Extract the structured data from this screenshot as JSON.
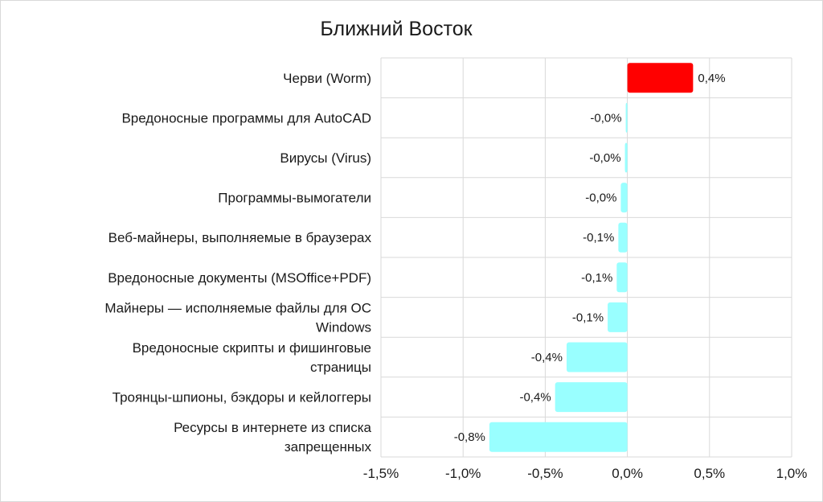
{
  "chart_data": {
    "type": "bar",
    "orientation": "horizontal",
    "title": "Ближний Восток",
    "xlabel": "",
    "ylabel": "",
    "xlim": [
      -1.5,
      1.0
    ],
    "x_ticks": [
      -1.5,
      -1.0,
      -0.5,
      0.0,
      0.5,
      1.0
    ],
    "x_tick_labels": [
      "-1,5%",
      "-1,0%",
      "-0,5%",
      "0,0%",
      "0,5%",
      "1,0%"
    ],
    "grid": true,
    "legend": "none",
    "categories": [
      [
        "Черви (Worm)"
      ],
      [
        "Вредоносные программы для AutoCAD"
      ],
      [
        "Вирусы (Virus)"
      ],
      [
        "Программы-вымогатели"
      ],
      [
        "Веб-майнеры, выполняемые в браузерах"
      ],
      [
        "Вредоносные документы (MSOffice+PDF)"
      ],
      [
        "Майнеры — исполняемые файлы для ОС",
        "Windows"
      ],
      [
        "Вредоносные скрипты и фишинговые",
        "страницы"
      ],
      [
        "Троянцы-шпионы, бэкдоры и кейлоггеры"
      ],
      [
        "Ресурсы в интернете из списка",
        "запрещенных"
      ]
    ],
    "values": [
      0.4,
      -0.01,
      -0.015,
      -0.04,
      -0.055,
      -0.065,
      -0.12,
      -0.37,
      -0.44,
      -0.84
    ],
    "data_labels": [
      "0,4%",
      "-0,0%",
      "-0,0%",
      "-0,0%",
      "-0,1%",
      "-0,1%",
      "-0,1%",
      "-0,4%",
      "-0,4%",
      "-0,8%"
    ],
    "colors": {
      "positive": "#ff0000",
      "negative": "#99ffff",
      "grid": "#d9d9d9"
    }
  }
}
